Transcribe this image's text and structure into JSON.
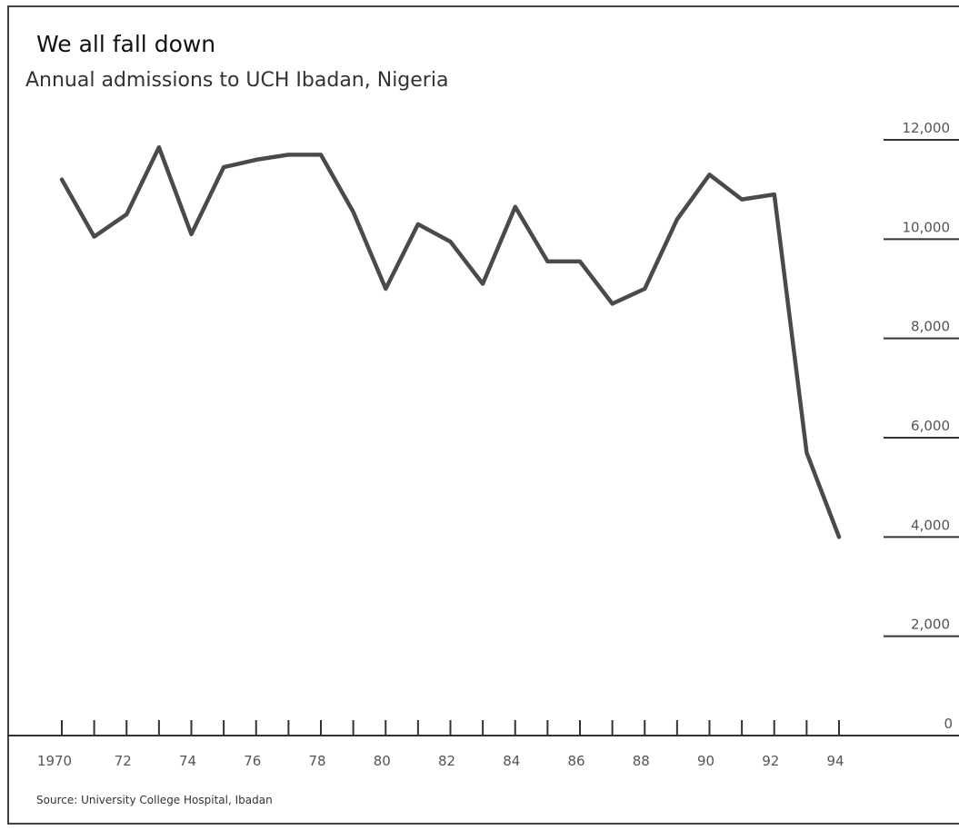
{
  "title": "We all fall down",
  "subtitle": "Annual admissions to UCH Ibadan, Nigeria",
  "source": "Source: University College Hospital, Ibadan",
  "chart_data": {
    "type": "line",
    "x": [
      1970,
      1971,
      1972,
      1973,
      1974,
      1975,
      1976,
      1977,
      1978,
      1979,
      1980,
      1981,
      1982,
      1983,
      1984,
      1985,
      1986,
      1987,
      1988,
      1989,
      1990,
      1991,
      1992,
      1993,
      1994
    ],
    "series": [
      {
        "values": [
          11200,
          10050,
          10500,
          11850,
          10100,
          11450,
          11600,
          11700,
          11700,
          10550,
          9000,
          10300,
          9950,
          9100,
          10650,
          9550,
          9550,
          8700,
          9000,
          10400,
          11300,
          10800,
          10900,
          5700,
          4000
        ],
        "color": "#4a4a4a"
      }
    ],
    "xlabel": "",
    "ylabel": "",
    "xlim": [
      1970,
      1994
    ],
    "ylim": [
      0,
      12000
    ],
    "x_tick_labels": [
      {
        "value": 1970,
        "label": "1970"
      },
      {
        "value": 1972,
        "label": "72"
      },
      {
        "value": 1974,
        "label": "74"
      },
      {
        "value": 1976,
        "label": "76"
      },
      {
        "value": 1978,
        "label": "78"
      },
      {
        "value": 1980,
        "label": "80"
      },
      {
        "value": 1982,
        "label": "82"
      },
      {
        "value": 1984,
        "label": "84"
      },
      {
        "value": 1986,
        "label": "86"
      },
      {
        "value": 1988,
        "label": "88"
      },
      {
        "value": 1990,
        "label": "90"
      },
      {
        "value": 1992,
        "label": "92"
      },
      {
        "value": 1994,
        "label": "94"
      }
    ],
    "y_tick_labels": [
      {
        "value": 0,
        "label": "0"
      },
      {
        "value": 2000,
        "label": "2,000"
      },
      {
        "value": 4000,
        "label": "4,000"
      },
      {
        "value": 6000,
        "label": "6,000"
      },
      {
        "value": 8000,
        "label": "8,000"
      },
      {
        "value": 10000,
        "label": "10,000"
      },
      {
        "value": 12000,
        "label": "12,000"
      }
    ],
    "grid": false,
    "legend": "none"
  }
}
